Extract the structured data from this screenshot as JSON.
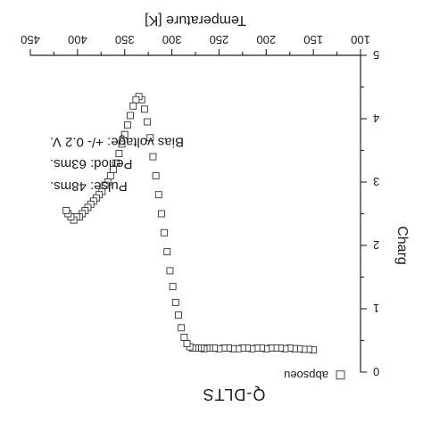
{
  "chart_data": {
    "type": "scatter",
    "title": "Q-DLTS",
    "xlabel": "Temperature [K]",
    "ylabel": "Charg",
    "xlim": [
      100,
      450
    ],
    "ylim": [
      0,
      5
    ],
    "y_inverted": true,
    "image_rotated_180": true,
    "x_ticks": [
      100,
      150,
      200,
      250,
      300,
      350,
      400,
      450
    ],
    "y_ticks": [
      0,
      1,
      2,
      3,
      4,
      5
    ],
    "marker": "open-square",
    "legend": {
      "position": "top-right",
      "entries": [
        "abpsoeu"
      ]
    },
    "annotations": [
      "Pulse: 48ms.",
      "Period: 63ms.",
      "Bias voltage: +/- 0.2 V."
    ],
    "series": [
      {
        "name": "abpsoeu",
        "x": [
          150,
          155,
          160,
          165,
          170,
          175,
          180,
          185,
          190,
          195,
          200,
          205,
          210,
          215,
          220,
          225,
          230,
          235,
          240,
          245,
          250,
          255,
          260,
          263,
          266,
          269,
          272,
          275,
          278,
          281,
          284,
          287,
          290,
          293,
          296,
          299,
          302,
          305,
          308,
          311,
          314,
          317,
          320,
          323,
          326,
          329,
          332,
          335,
          338,
          341,
          344,
          347,
          350,
          353,
          356,
          359,
          362,
          365,
          368,
          371,
          374,
          377,
          380,
          383,
          386,
          389,
          392,
          395,
          398,
          401,
          404,
          407,
          410,
          412
        ],
        "y": [
          0.35,
          0.36,
          0.36,
          0.37,
          0.37,
          0.38,
          0.37,
          0.38,
          0.38,
          0.38,
          0.37,
          0.38,
          0.38,
          0.37,
          0.38,
          0.38,
          0.37,
          0.37,
          0.38,
          0.38,
          0.37,
          0.38,
          0.38,
          0.38,
          0.37,
          0.38,
          0.38,
          0.38,
          0.38,
          0.4,
          0.45,
          0.55,
          0.7,
          0.9,
          1.1,
          1.35,
          1.6,
          1.9,
          2.2,
          2.5,
          2.8,
          3.1,
          3.4,
          3.7,
          3.95,
          4.15,
          4.3,
          4.35,
          4.3,
          4.2,
          4.05,
          3.9,
          3.75,
          3.6,
          3.45,
          3.3,
          3.2,
          3.1,
          3.0,
          2.95,
          2.85,
          2.8,
          2.75,
          2.7,
          2.65,
          2.6,
          2.55,
          2.5,
          2.45,
          2.45,
          2.4,
          2.45,
          2.5,
          2.55
        ]
      }
    ]
  }
}
